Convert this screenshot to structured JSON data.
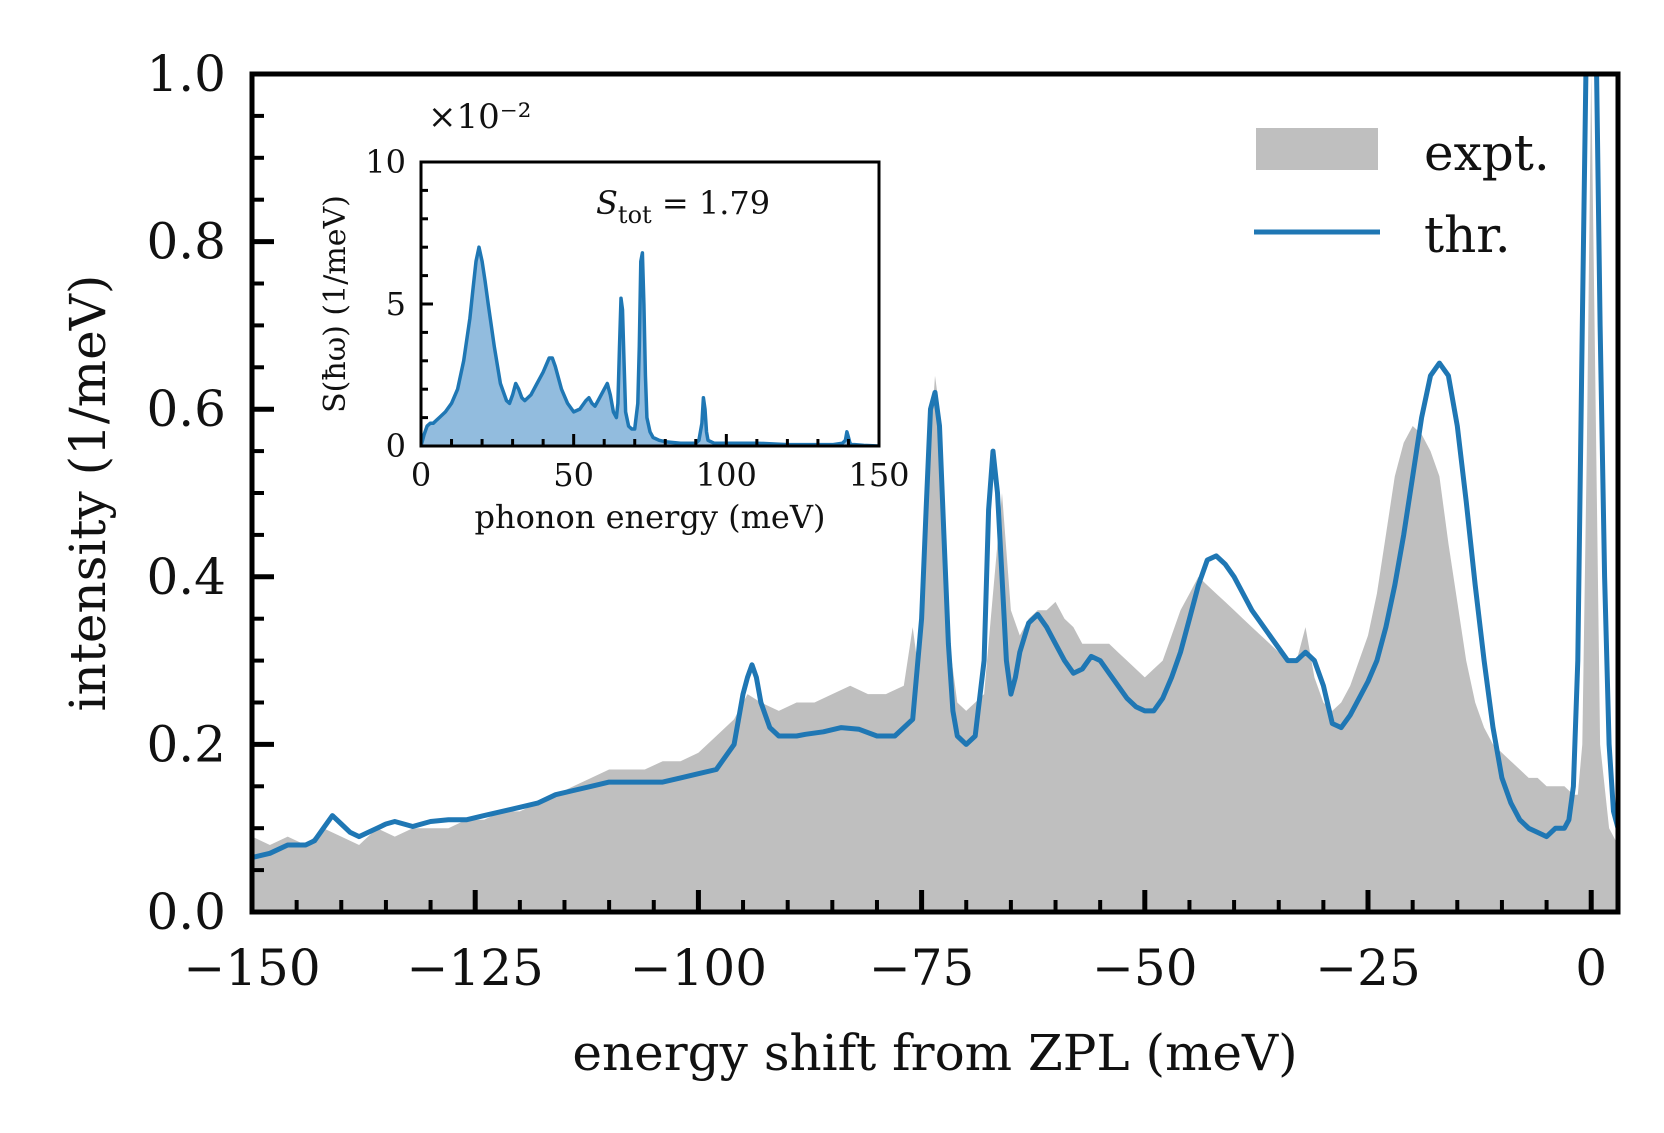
{
  "chart_data": [
    {
      "type": "area_line",
      "xlabel": "energy shift from ZPL (meV)",
      "ylabel": "intensity (1/meV)",
      "xlim": [
        -150,
        3
      ],
      "ylim": [
        0,
        1.0
      ],
      "xticks": [
        -150,
        -125,
        -100,
        -75,
        -50,
        -25,
        0
      ],
      "xtick_labels": [
        "−150",
        "−125",
        "−100",
        "−75",
        "−50",
        "−25",
        "0"
      ],
      "yticks": [
        0.0,
        0.2,
        0.4,
        0.6,
        0.8,
        1.0
      ],
      "ytick_labels": [
        "0.0",
        "0.2",
        "0.4",
        "0.6",
        "0.8",
        "1.0"
      ],
      "legend": {
        "position": "top-right",
        "entries": [
          "expt.",
          "thr."
        ]
      },
      "colors": {
        "expt": "#bfbfbf",
        "thr": "#1f77b4"
      },
      "series": [
        {
          "name": "expt.",
          "style": "filled",
          "x": [
            -150,
            -148,
            -146,
            -144,
            -142,
            -140,
            -138,
            -136,
            -134,
            -132,
            -130,
            -128,
            -126,
            -124,
            -122,
            -120,
            -118,
            -116,
            -114,
            -112,
            -110,
            -108,
            -106,
            -104,
            -102,
            -100,
            -98,
            -96,
            -94.5,
            -93,
            -91,
            -89,
            -87,
            -85,
            -83,
            -81,
            -79,
            -77,
            -76,
            -75.5,
            -75,
            -74,
            -73.5,
            -73,
            -72.5,
            -72,
            -71,
            -70,
            -69,
            -68,
            -67,
            -66,
            -65,
            -64,
            -63,
            -62,
            -61,
            -60,
            -59,
            -58,
            -57,
            -56,
            -55,
            -54,
            -53,
            -52,
            -51,
            -50,
            -49,
            -48,
            -47,
            -46,
            -45,
            -44,
            -43,
            -42,
            -41,
            -40,
            -39,
            -38,
            -37,
            -36,
            -35,
            -34,
            -33,
            -32,
            -31,
            -30,
            -29,
            -28,
            -27,
            -26,
            -25,
            -24,
            -23,
            -22,
            -21,
            -20,
            -19,
            -18,
            -17,
            -16,
            -15,
            -14,
            -13,
            -12,
            -11,
            -10,
            -9,
            -8,
            -7,
            -6,
            -5,
            -4,
            -3,
            -2,
            -1.5,
            -1,
            -0.5,
            0,
            0.5,
            1,
            2,
            3
          ],
          "values": [
            0.09,
            0.08,
            0.09,
            0.08,
            0.1,
            0.09,
            0.08,
            0.1,
            0.09,
            0.1,
            0.1,
            0.1,
            0.11,
            0.11,
            0.12,
            0.12,
            0.13,
            0.14,
            0.15,
            0.16,
            0.17,
            0.17,
            0.17,
            0.18,
            0.18,
            0.19,
            0.21,
            0.23,
            0.26,
            0.25,
            0.24,
            0.25,
            0.25,
            0.26,
            0.27,
            0.26,
            0.26,
            0.27,
            0.34,
            0.3,
            0.32,
            0.56,
            0.64,
            0.6,
            0.45,
            0.33,
            0.25,
            0.24,
            0.25,
            0.26,
            0.38,
            0.5,
            0.36,
            0.33,
            0.35,
            0.36,
            0.36,
            0.37,
            0.35,
            0.34,
            0.32,
            0.32,
            0.32,
            0.32,
            0.31,
            0.3,
            0.29,
            0.28,
            0.29,
            0.3,
            0.33,
            0.36,
            0.38,
            0.4,
            0.39,
            0.38,
            0.37,
            0.36,
            0.35,
            0.34,
            0.33,
            0.32,
            0.31,
            0.3,
            0.3,
            0.34,
            0.28,
            0.25,
            0.24,
            0.25,
            0.27,
            0.3,
            0.33,
            0.38,
            0.45,
            0.52,
            0.56,
            0.58,
            0.57,
            0.55,
            0.52,
            0.44,
            0.37,
            0.3,
            0.25,
            0.22,
            0.2,
            0.19,
            0.18,
            0.17,
            0.16,
            0.16,
            0.15,
            0.15,
            0.15,
            0.14,
            0.14,
            0.2,
            0.55,
            1.0,
            0.6,
            0.2,
            0.1,
            0.08
          ]
        },
        {
          "name": "thr.",
          "style": "line",
          "x": [
            -150,
            -148,
            -146,
            -144,
            -143,
            -142,
            -141,
            -140,
            -139,
            -138,
            -137,
            -136,
            -135,
            -134,
            -133,
            -132,
            -131,
            -130,
            -128,
            -126,
            -124,
            -122,
            -120,
            -118,
            -116,
            -114,
            -112,
            -110,
            -108,
            -106,
            -104,
            -102,
            -100,
            -98,
            -96,
            -95,
            -94.5,
            -94,
            -93.5,
            -93,
            -92,
            -91,
            -90,
            -89,
            -88,
            -86,
            -84,
            -82,
            -80,
            -78,
            -76,
            -75,
            -74.5,
            -74,
            -73.5,
            -73,
            -72.5,
            -72,
            -71.5,
            -71,
            -70,
            -69,
            -68,
            -67.5,
            -67,
            -66.5,
            -66,
            -65.5,
            -65,
            -64.5,
            -64,
            -63,
            -62,
            -61,
            -60,
            -59,
            -58,
            -57,
            -56,
            -55,
            -54,
            -53,
            -52,
            -51,
            -50,
            -49,
            -48,
            -47,
            -46,
            -45,
            -44,
            -43,
            -42,
            -41,
            -40,
            -39,
            -38,
            -37,
            -36,
            -35,
            -34,
            -33,
            -32,
            -31,
            -30,
            -29,
            -28,
            -27,
            -26,
            -25,
            -24,
            -23,
            -22,
            -21,
            -20,
            -19,
            -18,
            -17,
            -16,
            -15,
            -14,
            -13,
            -12,
            -11,
            -10,
            -9,
            -8,
            -7,
            -6,
            -5,
            -4,
            -3,
            -2.5,
            -2,
            -1.5,
            -1,
            -0.6,
            -0.3,
            0,
            0.3,
            0.6,
            1,
            1.5,
            2,
            2.5,
            3
          ],
          "values": [
            0.065,
            0.07,
            0.08,
            0.08,
            0.085,
            0.1,
            0.115,
            0.105,
            0.095,
            0.09,
            0.095,
            0.1,
            0.105,
            0.108,
            0.105,
            0.102,
            0.105,
            0.108,
            0.11,
            0.11,
            0.115,
            0.12,
            0.125,
            0.13,
            0.14,
            0.145,
            0.15,
            0.155,
            0.155,
            0.155,
            0.155,
            0.16,
            0.165,
            0.17,
            0.2,
            0.26,
            0.28,
            0.295,
            0.28,
            0.25,
            0.22,
            0.21,
            0.21,
            0.21,
            0.212,
            0.215,
            0.22,
            0.218,
            0.21,
            0.21,
            0.23,
            0.35,
            0.48,
            0.6,
            0.62,
            0.58,
            0.45,
            0.32,
            0.24,
            0.21,
            0.2,
            0.21,
            0.3,
            0.48,
            0.55,
            0.5,
            0.4,
            0.3,
            0.26,
            0.28,
            0.31,
            0.345,
            0.355,
            0.34,
            0.32,
            0.3,
            0.285,
            0.29,
            0.305,
            0.3,
            0.285,
            0.27,
            0.255,
            0.245,
            0.24,
            0.24,
            0.255,
            0.28,
            0.31,
            0.35,
            0.39,
            0.42,
            0.425,
            0.415,
            0.4,
            0.38,
            0.36,
            0.345,
            0.33,
            0.315,
            0.3,
            0.3,
            0.31,
            0.3,
            0.27,
            0.225,
            0.22,
            0.235,
            0.255,
            0.275,
            0.3,
            0.34,
            0.39,
            0.45,
            0.52,
            0.59,
            0.64,
            0.655,
            0.64,
            0.58,
            0.49,
            0.39,
            0.3,
            0.22,
            0.16,
            0.13,
            0.11,
            0.1,
            0.095,
            0.09,
            0.1,
            0.1,
            0.11,
            0.15,
            0.3,
            0.7,
            1.0,
            1.0,
            1.0,
            1.0,
            1.0,
            0.7,
            0.4,
            0.2,
            0.12,
            0.1
          ]
        }
      ]
    },
    {
      "type": "area",
      "name": "inset",
      "xlabel": "phonon energy (meV)",
      "ylabel": "S(ħω) (1/meV)",
      "scale_label": "×10⁻²",
      "annotation": "S_tot = 1.79",
      "annotation_parts": {
        "symbol": "S",
        "subscript": "tot",
        "rest": " = 1.79"
      },
      "xlim": [
        0,
        150
      ],
      "ylim": [
        0,
        10
      ],
      "xticks": [
        0,
        50,
        100,
        150
      ],
      "xtick_labels": [
        "0",
        "50",
        "100",
        "150"
      ],
      "yticks": [
        0,
        5,
        10
      ],
      "ytick_labels": [
        "0",
        "5",
        "10"
      ],
      "colors": {
        "fill": "#7fb0d8",
        "line": "#1f77b4"
      },
      "series": [
        {
          "name": "S(ħω)",
          "x": [
            0,
            1,
            2,
            3,
            4,
            5,
            6,
            8,
            10,
            12,
            14,
            16,
            17,
            18,
            19,
            20,
            21,
            22,
            24,
            26,
            28,
            29,
            30,
            31,
            32,
            33,
            34,
            36,
            38,
            40,
            42,
            43,
            44,
            46,
            48,
            50,
            52,
            54,
            55,
            56,
            57,
            58,
            60,
            61,
            62,
            63,
            64,
            64.5,
            65,
            65.5,
            66,
            66.5,
            67,
            68,
            69,
            70,
            71,
            71.5,
            72,
            72.5,
            73,
            73.5,
            74,
            75,
            76,
            78,
            80,
            85,
            90,
            91,
            92,
            92.5,
            93,
            93.5,
            94,
            96,
            100,
            110,
            120,
            130,
            135,
            138,
            139,
            139.5,
            140,
            140.5,
            141,
            142,
            145,
            150
          ],
          "values": [
            0.0,
            0.4,
            0.7,
            0.8,
            0.8,
            0.9,
            1.0,
            1.2,
            1.5,
            2.0,
            3.0,
            4.5,
            5.5,
            6.5,
            7.0,
            6.5,
            5.8,
            5.0,
            3.5,
            2.2,
            1.6,
            1.5,
            1.8,
            2.2,
            2.0,
            1.7,
            1.6,
            1.8,
            2.2,
            2.6,
            3.1,
            3.1,
            2.8,
            2.0,
            1.5,
            1.2,
            1.3,
            1.6,
            1.7,
            1.5,
            1.4,
            1.6,
            2.0,
            2.2,
            1.8,
            1.2,
            1.0,
            1.5,
            3.5,
            5.2,
            4.8,
            3.0,
            1.2,
            0.7,
            0.6,
            0.6,
            1.5,
            3.5,
            6.5,
            6.8,
            5.0,
            2.5,
            1.0,
            0.5,
            0.3,
            0.2,
            0.15,
            0.1,
            0.1,
            0.2,
            0.8,
            1.7,
            1.3,
            0.5,
            0.2,
            0.1,
            0.1,
            0.1,
            0.05,
            0.05,
            0.05,
            0.1,
            0.2,
            0.5,
            0.3,
            0.1,
            0.05,
            0.05,
            0.02,
            0.0
          ]
        }
      ]
    }
  ]
}
